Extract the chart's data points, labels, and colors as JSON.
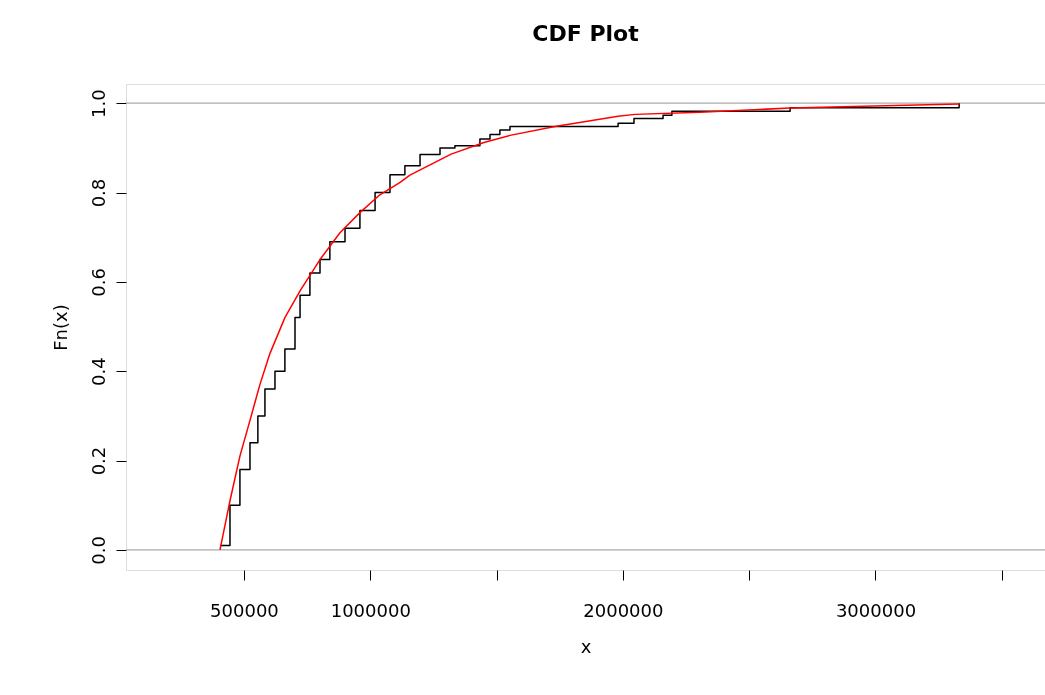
{
  "chart_data": {
    "type": "step",
    "title": "CDF Plot",
    "xlabel": "x",
    "ylabel": "Fn(x)",
    "xlim": [
      33000,
      3671000
    ],
    "ylim": [
      -0.045,
      1.043
    ],
    "xticks": [
      500000,
      1000000,
      {
        "value": 1500000,
        "label": null
      },
      2000000,
      {
        "value": 2500000,
        "label": null
      },
      3000000,
      {
        "value": 3500000,
        "label": null
      }
    ],
    "yticks": [
      {
        "value": 0,
        "label": "0.0"
      },
      0.2,
      0.4,
      0.6,
      0.8,
      {
        "value": 1,
        "label": "1.0"
      }
    ],
    "grid": false,
    "marker": "none",
    "line_style": "solid",
    "series": [
      {
        "type": "step",
        "color": "#000000",
        "x": [
          405000,
          444600,
          484000,
          523800,
          555000,
          583000,
          622700,
          662000,
          702000,
          722000,
          761000,
          801000,
          840000,
          900000,
          959000,
          1019000,
          1078000,
          1137000,
          1197000,
          1276000,
          1335000,
          1434000,
          1474000,
          1513000,
          1553000,
          1981000,
          2044000,
          2159000,
          2194000,
          2662000,
          3331000
        ],
        "values": [
          0.01,
          0.1,
          0.18,
          0.24,
          0.3,
          0.36,
          0.4,
          0.45,
          0.52,
          0.57,
          0.62,
          0.65,
          0.69,
          0.72,
          0.76,
          0.8,
          0.84,
          0.86,
          0.885,
          0.9,
          0.905,
          0.92,
          0.93,
          0.94,
          0.948,
          0.955,
          0.966,
          0.973,
          0.982,
          0.99,
          1.0
        ]
      },
      {
        "type": "line",
        "color": "#ff0000",
        "x": [
          405000,
          444600,
          484000,
          523800,
          563000,
          603000,
          662000,
          722000,
          801000,
          880000,
          959000,
          1038000,
          1118000,
          1157000,
          1320000,
          1450000,
          1553000,
          1731000,
          1981000,
          2048000,
          2305000,
          2662000,
          3331000
        ],
        "values": [
          0.0,
          0.11,
          0.21,
          0.29,
          0.37,
          0.44,
          0.52,
          0.58,
          0.65,
          0.71,
          0.755,
          0.795,
          0.823,
          0.839,
          0.886,
          0.912,
          0.928,
          0.948,
          0.971,
          0.975,
          0.98,
          0.989,
          0.998
        ]
      }
    ],
    "ref_lines": [
      {
        "axis": "y",
        "value": 0,
        "color": "#aaaaaa"
      },
      {
        "axis": "y",
        "value": 1,
        "color": "#aaaaaa"
      }
    ]
  }
}
